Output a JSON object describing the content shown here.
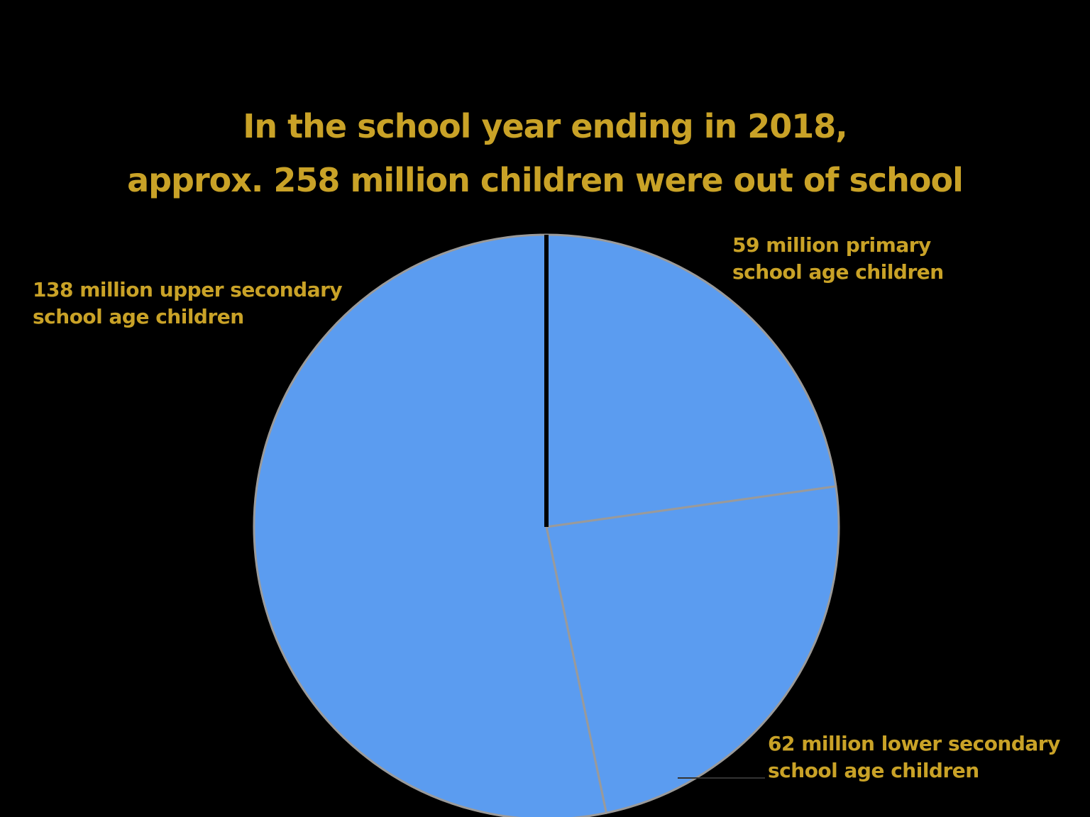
{
  "chart_data": {
    "type": "pie",
    "title_lines": [
      "In the school year ending in 2018,",
      "approx. 258 million children were out of school"
    ],
    "slices": [
      {
        "label_lines": [
          "59 million primary",
          "school age children"
        ],
        "value": 59
      },
      {
        "label_lines": [
          "62 million lower secondary",
          "school age children"
        ],
        "value": 62
      },
      {
        "label_lines": [
          "138 million upper secondary",
          "school age children"
        ],
        "value": 138
      }
    ],
    "start_angle": "12 o'clock",
    "direction": "clockwise",
    "colors": {
      "background": "#000000",
      "slice_fill": "#5b9cf0",
      "slice_border": "#9a9a9a",
      "start_line": "#000000",
      "text": "#c9a227"
    }
  }
}
